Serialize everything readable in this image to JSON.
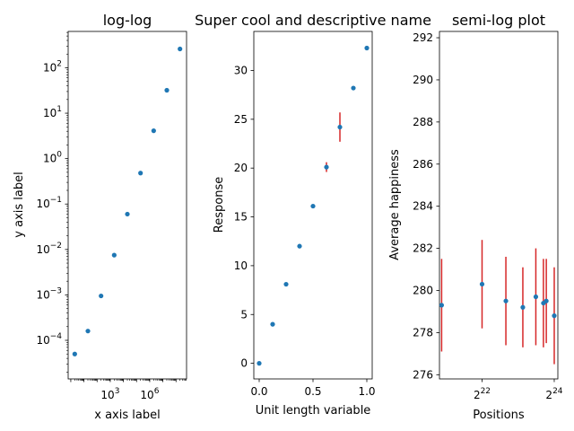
{
  "chart_data": [
    {
      "type": "scatter",
      "title": "log-log",
      "xlabel": "x axis label",
      "ylabel": "y axis label",
      "xscale": "log",
      "yscale": "log",
      "x_tick_labels": [
        "10^3",
        "10^6"
      ],
      "y_tick_labels": [
        "10^-4",
        "10^-3",
        "10^-2",
        "10^-1",
        "10^0",
        "10^1",
        "10^2"
      ],
      "x": [
        2,
        20,
        200,
        2000,
        20000,
        200000,
        2000000,
        20000000,
        200000000
      ],
      "y": [
        5e-05,
        0.00016,
        0.00095,
        0.0075,
        0.06,
        0.48,
        4.1,
        32,
        260
      ],
      "marker_color": "#1f77b4",
      "grid": false
    },
    {
      "type": "scatter",
      "title": "Super cool and descriptive name",
      "xlabel": "Unit length variable",
      "ylabel": "Response",
      "xlim": [
        -0.05,
        1.05
      ],
      "ylim": [
        -1.6,
        34.0
      ],
      "x_ticks": [
        0.0,
        0.5,
        1.0
      ],
      "x_tick_labels": [
        "0.0",
        "0.5",
        "1.0"
      ],
      "y_ticks": [
        0,
        5,
        10,
        15,
        20,
        25,
        30
      ],
      "y_tick_labels": [
        "0",
        "5",
        "10",
        "15",
        "20",
        "25",
        "30"
      ],
      "x": [
        0.0,
        0.125,
        0.25,
        0.375,
        0.5,
        0.625,
        0.75,
        0.875,
        1.0
      ],
      "y": [
        0.0,
        4.0,
        8.1,
        12.0,
        16.1,
        20.1,
        24.2,
        28.2,
        32.3
      ],
      "y_err": [
        0,
        0,
        0,
        0,
        0,
        0.5,
        1.5,
        0,
        0
      ],
      "marker_color": "#1f77b4",
      "error_color": "#d62728",
      "grid": false
    },
    {
      "type": "scatter",
      "title": "semi-log plot",
      "xlabel": "Positions",
      "ylabel": "Average happiness",
      "xscale": "log2",
      "ylim": [
        275.8,
        292.3
      ],
      "x_ticks_log2": [
        22,
        24
      ],
      "x_tick_labels": [
        "2^22",
        "2^24"
      ],
      "y_ticks": [
        276,
        278,
        280,
        282,
        284,
        286,
        288,
        290,
        292
      ],
      "y_tick_labels": [
        "276",
        "278",
        "280",
        "282",
        "284",
        "286",
        "288",
        "290",
        "292"
      ],
      "x_log2": [
        20.88,
        22.0,
        22.66,
        23.13,
        23.49,
        23.78,
        24.0
      ],
      "x_log2_extra": [
        23.7
      ],
      "y": [
        279.3,
        280.3,
        279.5,
        279.2,
        279.7,
        279.5,
        278.8
      ],
      "y_extra": [
        279.4
      ],
      "y_err": [
        2.2,
        2.1,
        2.1,
        1.9,
        2.3,
        2.0,
        2.3
      ],
      "y_err_extra": [
        2.1
      ],
      "marker_color": "#1f77b4",
      "error_color": "#d62728",
      "grid": false
    }
  ]
}
